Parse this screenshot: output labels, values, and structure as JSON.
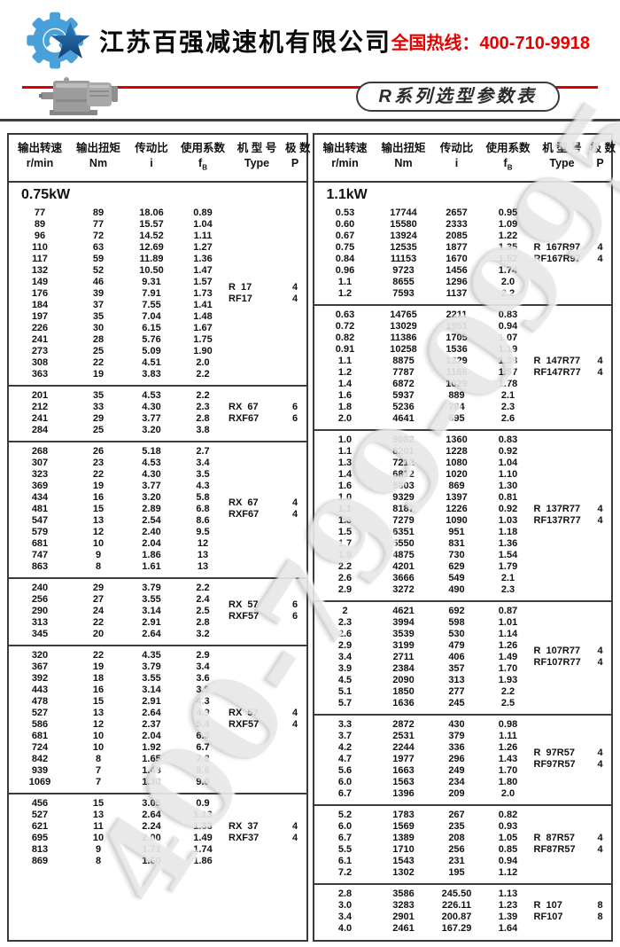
{
  "header": {
    "company_name": "江苏百强减速机有限公司",
    "hotline_label": "全国热线：",
    "hotline_number": "400-710-9918",
    "hotline_color": "#e60000",
    "series_label": "R系列选型参数表",
    "logo_gear_color": "#4aa0d8",
    "logo_star_color_top": "#2f80c3",
    "logo_star_color_bottom": "#123e6f"
  },
  "watermark": {
    "text": "400-799-0995"
  },
  "columns": [
    {
      "line1": "输出转速",
      "line2": "r/min"
    },
    {
      "line1": "输出扭矩",
      "line2": "Nm"
    },
    {
      "line1": "传动比",
      "line2": "i"
    },
    {
      "line1": "使用系数",
      "line2": "f",
      "sub": "B"
    },
    {
      "line1": "机 型 号",
      "line2": "Type"
    },
    {
      "line1": "极 数",
      "line2": "P"
    }
  ],
  "tables": [
    {
      "power": "0.75kW",
      "sections": [
        {
          "type": [
            "R  17",
            "RF17"
          ],
          "poles": [
            "4",
            "4"
          ],
          "rows": [
            [
              "77",
              "89",
              "18.06",
              "0.89"
            ],
            [
              "89",
              "77",
              "15.57",
              "1.04"
            ],
            [
              "96",
              "72",
              "14.52",
              "1.11"
            ],
            [
              "110",
              "63",
              "12.69",
              "1.27"
            ],
            [
              "117",
              "59",
              "11.89",
              "1.36"
            ],
            [
              "132",
              "52",
              "10.50",
              "1.47"
            ],
            [
              "149",
              "46",
              "9.31",
              "1.57"
            ],
            [
              "176",
              "39",
              "7.91",
              "1.73"
            ],
            [
              "184",
              "37",
              "7.55",
              "1.41"
            ],
            [
              "197",
              "35",
              "7.04",
              "1.48"
            ],
            [
              "226",
              "30",
              "6.15",
              "1.67"
            ],
            [
              "241",
              "28",
              "5.76",
              "1.75"
            ],
            [
              "273",
              "25",
              "5.09",
              "1.90"
            ],
            [
              "308",
              "22",
              "4.51",
              "2.0"
            ],
            [
              "363",
              "19",
              "3.83",
              "2.2"
            ]
          ]
        },
        {
          "type": [
            "RX  67",
            "RXF67"
          ],
          "poles": [
            "6",
            "6"
          ],
          "rows": [
            [
              "201",
              "35",
              "4.53",
              "2.2"
            ],
            [
              "212",
              "33",
              "4.30",
              "2.3"
            ],
            [
              "241",
              "29",
              "3.77",
              "2.8"
            ],
            [
              "284",
              "25",
              "3.20",
              "3.8"
            ]
          ]
        },
        {
          "type": [
            "RX  67",
            "RXF67"
          ],
          "poles": [
            "4",
            "4"
          ],
          "rows": [
            [
              "268",
              "26",
              "5.18",
              "2.7"
            ],
            [
              "307",
              "23",
              "4.53",
              "3.4"
            ],
            [
              "323",
              "22",
              "4.30",
              "3.5"
            ],
            [
              "369",
              "19",
              "3.77",
              "4.3"
            ],
            [
              "434",
              "16",
              "3.20",
              "5.8"
            ],
            [
              "481",
              "15",
              "2.89",
              "6.8"
            ],
            [
              "547",
              "13",
              "2.54",
              "8.6"
            ],
            [
              "579",
              "12",
              "2.40",
              "9.5"
            ],
            [
              "681",
              "10",
              "2.04",
              "12"
            ],
            [
              "747",
              "9",
              "1.86",
              "13"
            ],
            [
              "863",
              "8",
              "1.61",
              "13"
            ]
          ]
        },
        {
          "type": [
            "RX  57",
            "RXF57"
          ],
          "poles": [
            "6",
            "6"
          ],
          "rows": [
            [
              "240",
              "29",
              "3.79",
              "2.2"
            ],
            [
              "256",
              "27",
              "3.55",
              "2.4"
            ],
            [
              "290",
              "24",
              "3.14",
              "2.5"
            ],
            [
              "313",
              "22",
              "2.91",
              "2.8"
            ],
            [
              "345",
              "20",
              "2.64",
              "3.2"
            ]
          ]
        },
        {
          "type": [
            "RX  57",
            "RXF57"
          ],
          "poles": [
            "4",
            "4"
          ],
          "rows": [
            [
              "320",
              "22",
              "4.35",
              "2.9"
            ],
            [
              "367",
              "19",
              "3.79",
              "3.4"
            ],
            [
              "392",
              "18",
              "3.55",
              "3.6"
            ],
            [
              "443",
              "16",
              "3.14",
              "3.9"
            ],
            [
              "478",
              "15",
              "2.91",
              "4.3"
            ],
            [
              "527",
              "13",
              "2.64",
              "4.9"
            ],
            [
              "586",
              "12",
              "2.37",
              "5.4"
            ],
            [
              "681",
              "10",
              "2.04",
              "6.3"
            ],
            [
              "724",
              "10",
              "1.92",
              "6.7"
            ],
            [
              "842",
              "8",
              "1.65",
              "7.8"
            ],
            [
              "939",
              "7",
              "1.48",
              "8.6"
            ],
            [
              "1069",
              "7",
              "1.30",
              "9.0"
            ]
          ]
        },
        {
          "type": [
            "RX  37",
            "RXF37"
          ],
          "poles": [
            "4",
            "4"
          ],
          "rows": [
            [
              "456",
              "15",
              "3.05",
              "0.9"
            ],
            [
              "527",
              "13",
              "2.64",
              "1.13"
            ],
            [
              "621",
              "11",
              "2.24",
              "1.33"
            ],
            [
              "695",
              "10",
              "2.00",
              "1.49"
            ],
            [
              "813",
              "9",
              "1.71",
              "1.74"
            ],
            [
              "869",
              "8",
              "1.60",
              "1.86"
            ]
          ]
        }
      ]
    },
    {
      "power": "1.1kW",
      "sections": [
        {
          "type": [
            "R  167R97",
            "RF167R97"
          ],
          "poles": [
            "4",
            "4"
          ],
          "rows": [
            [
              "0.53",
              "17744",
              "2657",
              "0.95"
            ],
            [
              "0.60",
              "15580",
              "2333",
              "1.09"
            ],
            [
              "0.67",
              "13924",
              "2085",
              "1.22"
            ],
            [
              "0.75",
              "12535",
              "1877",
              "1.35"
            ],
            [
              "0.84",
              "11153",
              "1670",
              "1.52"
            ],
            [
              "0.96",
              "9723",
              "1456",
              "1.74"
            ],
            [
              "1.1",
              "8655",
              "1296",
              "2.0"
            ],
            [
              "1.2",
              "7593",
              "1137",
              "2.2"
            ]
          ]
        },
        {
          "type": [
            "R  147R77",
            "RF147R77"
          ],
          "poles": [
            "4",
            "4"
          ],
          "rows": [
            [
              "0.63",
              "14765",
              "2211",
              "0.83"
            ],
            [
              "0.72",
              "13029",
              "1951",
              "0.94"
            ],
            [
              "0.82",
              "11386",
              "1705",
              "1.07"
            ],
            [
              "0.91",
              "10258",
              "1536",
              "1.19"
            ],
            [
              "1.1",
              "8875",
              "1329",
              "1.38"
            ],
            [
              "1.2",
              "7787",
              "1166",
              "1.57"
            ],
            [
              "1.4",
              "6872",
              "1029",
              "1.78"
            ],
            [
              "1.6",
              "5937",
              "889",
              "2.1"
            ],
            [
              "1.8",
              "5236",
              "784",
              "2.3"
            ],
            [
              "2.0",
              "4641",
              "695",
              "2.6"
            ]
          ]
        },
        {
          "type": [
            "R  137R77",
            "RF137R77"
          ],
          "poles": [
            "4",
            "4"
          ],
          "rows": [
            [
              "1.0",
              "9082",
              "1360",
              "0.83"
            ],
            [
              "1.1",
              "8201",
              "1228",
              "0.92"
            ],
            [
              "1.3",
              "7212",
              "1080",
              "1.04"
            ],
            [
              "1.4",
              "6812",
              "1020",
              "1.10"
            ],
            [
              "1.6",
              "5803",
              "869",
              "1.30"
            ],
            [
              "1.0",
              "9329",
              "1397",
              "0.81"
            ],
            [
              "1.1",
              "8187",
              "1226",
              "0.92"
            ],
            [
              "1.3",
              "7279",
              "1090",
              "1.03"
            ],
            [
              "1.5",
              "6351",
              "951",
              "1.18"
            ],
            [
              "1.7",
              "5550",
              "831",
              "1.36"
            ],
            [
              "1.9",
              "4875",
              "730",
              "1.54"
            ],
            [
              "2.2",
              "4201",
              "629",
              "1.79"
            ],
            [
              "2.6",
              "3666",
              "549",
              "2.1"
            ],
            [
              "2.9",
              "3272",
              "490",
              "2.3"
            ]
          ]
        },
        {
          "type": [
            "R  107R77",
            "RF107R77"
          ],
          "poles": [
            "4",
            "4"
          ],
          "rows": [
            [
              "2",
              "4621",
              "692",
              "0.87"
            ],
            [
              "2.3",
              "3994",
              "598",
              "1.01"
            ],
            [
              "2.6",
              "3539",
              "530",
              "1.14"
            ],
            [
              "2.9",
              "3199",
              "479",
              "1.26"
            ],
            [
              "3.4",
              "2711",
              "406",
              "1.49"
            ],
            [
              "3.9",
              "2384",
              "357",
              "1.70"
            ],
            [
              "4.5",
              "2090",
              "313",
              "1.93"
            ],
            [
              "5.1",
              "1850",
              "277",
              "2.2"
            ],
            [
              "5.7",
              "1636",
              "245",
              "2.5"
            ]
          ]
        },
        {
          "type": [
            "R  97R57",
            "RF97R57"
          ],
          "poles": [
            "4",
            "4"
          ],
          "rows": [
            [
              "3.3",
              "2872",
              "430",
              "0.98"
            ],
            [
              "3.7",
              "2531",
              "379",
              "1.11"
            ],
            [
              "4.2",
              "2244",
              "336",
              "1.26"
            ],
            [
              "4.7",
              "1977",
              "296",
              "1.43"
            ],
            [
              "5.6",
              "1663",
              "249",
              "1.70"
            ],
            [
              "6.0",
              "1563",
              "234",
              "1.80"
            ],
            [
              "6.7",
              "1396",
              "209",
              "2.0"
            ]
          ]
        },
        {
          "type": [
            "R  87R57",
            "RF87R57"
          ],
          "poles": [
            "4",
            "4"
          ],
          "rows": [
            [
              "5.2",
              "1783",
              "267",
              "0.82"
            ],
            [
              "6.0",
              "1569",
              "235",
              "0.93"
            ],
            [
              "6.7",
              "1389",
              "208",
              "1.05"
            ],
            [
              "5.5",
              "1710",
              "256",
              "0.85"
            ],
            [
              "6.1",
              "1543",
              "231",
              "0.94"
            ],
            [
              "7.2",
              "1302",
              "195",
              "1.12"
            ]
          ]
        },
        {
          "type": [
            "R  107",
            "RF107"
          ],
          "poles": [
            "8",
            "8"
          ],
          "rows": [
            [
              "2.8",
              "3586",
              "245.50",
              "1.13"
            ],
            [
              "3.0",
              "3283",
              "226.11",
              "1.23"
            ],
            [
              "3.4",
              "2901",
              "200.87",
              "1.39"
            ],
            [
              "4.0",
              "2461",
              "167.29",
              "1.64"
            ]
          ]
        }
      ]
    }
  ]
}
